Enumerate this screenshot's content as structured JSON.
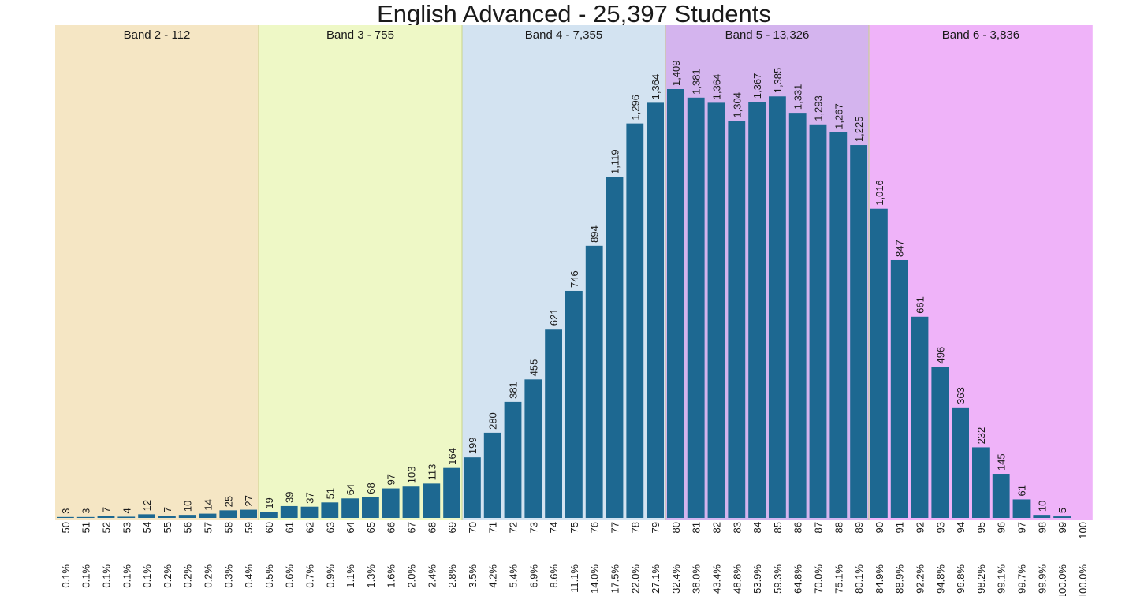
{
  "chart_data": {
    "type": "bar",
    "title": "English Advanced - 25,397 Students",
    "xlabel": "",
    "ylabel": "",
    "grid": false,
    "bar_color": "#1d6891",
    "bands": [
      {
        "label": "Band 2 - 112",
        "from": 50,
        "to": 59,
        "color": "#f5e6c4"
      },
      {
        "label": "Band 3 - 755",
        "from": 60,
        "to": 69,
        "color": "#eef8c6"
      },
      {
        "label": "Band 4 - 7,355",
        "from": 70,
        "to": 79,
        "color": "#d3e3f1"
      },
      {
        "label": "Band 5 - 13,326",
        "from": 80,
        "to": 89,
        "color": "#d4b4ee"
      },
      {
        "label": "Band 6 - 3,836",
        "from": 90,
        "to": 100,
        "color": "#efb3f9"
      }
    ],
    "categories": [
      "50",
      "51",
      "52",
      "53",
      "54",
      "55",
      "56",
      "57",
      "58",
      "59",
      "60",
      "61",
      "62",
      "63",
      "64",
      "65",
      "66",
      "67",
      "68",
      "69",
      "70",
      "71",
      "72",
      "73",
      "74",
      "75",
      "76",
      "77",
      "78",
      "79",
      "80",
      "81",
      "82",
      "83",
      "84",
      "85",
      "86",
      "87",
      "88",
      "89",
      "90",
      "91",
      "92",
      "93",
      "94",
      "95",
      "96",
      "97",
      "98",
      "99",
      "100"
    ],
    "values": [
      3,
      3,
      7,
      4,
      12,
      7,
      10,
      14,
      25,
      27,
      19,
      39,
      37,
      51,
      64,
      68,
      97,
      103,
      113,
      164,
      199,
      280,
      381,
      455,
      621,
      746,
      894,
      1119,
      1296,
      1364,
      1409,
      1381,
      1364,
      1304,
      1367,
      1385,
      1331,
      1293,
      1267,
      1225,
      1016,
      847,
      661,
      496,
      363,
      232,
      145,
      61,
      10,
      5,
      null
    ],
    "value_labels": [
      "3",
      "3",
      "7",
      "4",
      "12",
      "7",
      "10",
      "14",
      "25",
      "27",
      "19",
      "39",
      "37",
      "51",
      "64",
      "68",
      "97",
      "103",
      "113",
      "164",
      "199",
      "280",
      "381",
      "455",
      "621",
      "746",
      "894",
      "1,119",
      "1,296",
      "1,364",
      "1,409",
      "1,381",
      "1,364",
      "1,304",
      "1,367",
      "1,385",
      "1,331",
      "1,293",
      "1,267",
      "1,225",
      "1,016",
      "847",
      "661",
      "496",
      "363",
      "232",
      "145",
      "61",
      "10",
      "5",
      ""
    ],
    "cumulative_labels": [
      "0.1%",
      "0.1%",
      "0.1%",
      "0.1%",
      "0.1%",
      "0.2%",
      "0.2%",
      "0.2%",
      "0.3%",
      "0.4%",
      "0.5%",
      "0.6%",
      "0.7%",
      "0.9%",
      "1.1%",
      "1.3%",
      "1.6%",
      "2.0%",
      "2.4%",
      "2.8%",
      "3.5%",
      "4.2%",
      "5.4%",
      "6.9%",
      "8.6%",
      "11.1%",
      "14.0%",
      "17.5%",
      "22.0%",
      "27.1%",
      "32.4%",
      "38.0%",
      "43.4%",
      "48.8%",
      "53.9%",
      "59.3%",
      "64.8%",
      "70.0%",
      "75.1%",
      "80.1%",
      "84.9%",
      "88.9%",
      "92.2%",
      "94.8%",
      "96.8%",
      "98.2%",
      "99.1%",
      "99.7%",
      "99.9%",
      "100.0%",
      "100.0%"
    ],
    "ylim": [
      0,
      1480
    ]
  }
}
